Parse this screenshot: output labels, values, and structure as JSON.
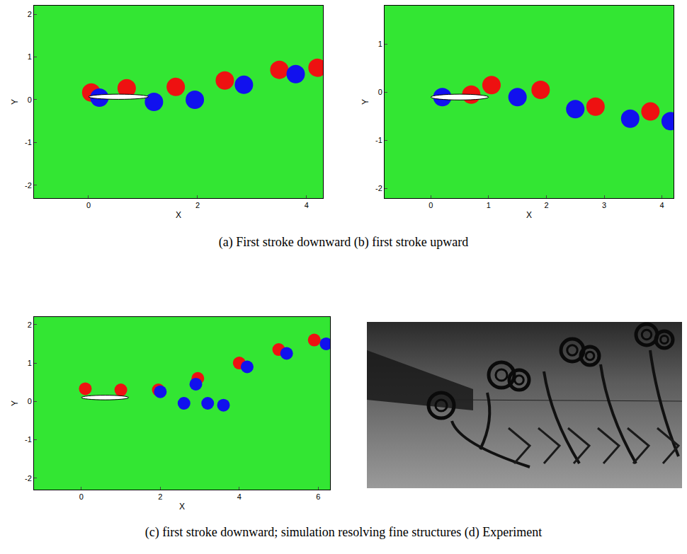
{
  "captions": [
    "(a) First stroke downward",
    "(b) first stroke upward",
    "(c) first stroke downward; simulation resolving fine structures",
    "(d) Experiment"
  ],
  "chart_data": [
    {
      "type": "scatter",
      "x_label": "X",
      "y_label": "Y",
      "marker": "circle",
      "xlim": [
        -1,
        4.3
      ],
      "ylim": [
        -2.3,
        2.2
      ],
      "xticks": [
        0,
        2,
        4
      ],
      "yticks": [
        -2,
        -1,
        0,
        1,
        2
      ],
      "foil": {
        "x": [
          0,
          1.1
        ],
        "y": 0.07
      },
      "series": [
        {
          "color": "#ee1111",
          "x": [
            0.05,
            0.7,
            1.6,
            2.5,
            3.5,
            4.2
          ],
          "y": [
            0.17,
            0.27,
            0.3,
            0.45,
            0.7,
            0.75
          ]
        },
        {
          "color": "#1111ee",
          "x": [
            0.2,
            1.2,
            1.95,
            2.85,
            3.8
          ],
          "y": [
            0.05,
            -0.05,
            0.0,
            0.35,
            0.6
          ]
        }
      ]
    },
    {
      "type": "scatter",
      "x_label": "X",
      "y_label": "Y",
      "marker": "circle",
      "xlim": [
        -0.8,
        4.2
      ],
      "ylim": [
        -2.2,
        1.8
      ],
      "xticks": [
        0,
        1,
        2,
        3,
        4
      ],
      "yticks": [
        -2,
        -1,
        0,
        1
      ],
      "foil": {
        "x": [
          0,
          1
        ],
        "y": -0.1
      },
      "series": [
        {
          "color": "#ee1111",
          "x": [
            0.7,
            1.05,
            1.9,
            2.85,
            3.8
          ],
          "y": [
            -0.05,
            0.15,
            0.05,
            -0.3,
            -0.4
          ]
        },
        {
          "color": "#1111ee",
          "x": [
            0.2,
            1.5,
            2.5,
            3.45,
            4.15
          ],
          "y": [
            -0.1,
            -0.1,
            -0.35,
            -0.55,
            -0.6
          ]
        }
      ]
    },
    {
      "type": "scatter",
      "x_label": "X",
      "y_label": "Y",
      "marker": "circle",
      "xlim": [
        -1.2,
        6.3
      ],
      "ylim": [
        -2.3,
        2.2
      ],
      "xticks": [
        0,
        2,
        4,
        6
      ],
      "yticks": [
        -2,
        -1,
        0,
        1,
        2
      ],
      "foil": {
        "x": [
          0,
          1.2
        ],
        "y": 0.1
      },
      "series": [
        {
          "color": "#ee1111",
          "x": [
            0.1,
            1.0,
            1.95,
            2.95,
            4.0,
            5.0,
            5.9
          ],
          "y": [
            0.33,
            0.3,
            0.3,
            0.6,
            1.0,
            1.35,
            1.6
          ]
        },
        {
          "color": "#1111ee",
          "x": [
            2.0,
            2.6,
            2.9,
            3.2,
            3.6,
            4.2,
            5.2,
            6.2
          ],
          "y": [
            0.25,
            -0.05,
            0.45,
            -0.05,
            -0.1,
            0.9,
            1.25,
            1.5
          ]
        }
      ]
    }
  ]
}
